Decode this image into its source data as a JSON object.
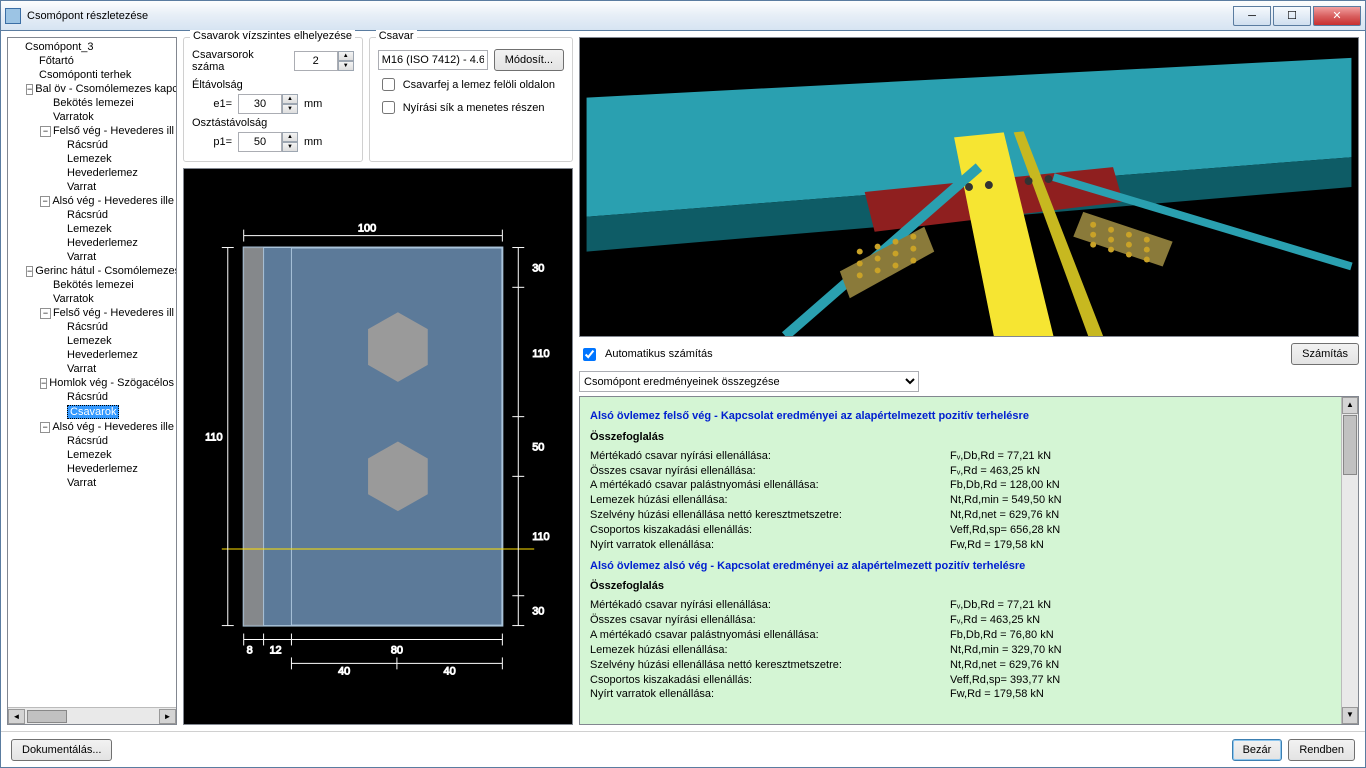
{
  "window": {
    "title": "Csomópont részletezése"
  },
  "tree": {
    "root": "Csomópont_3",
    "items": [
      {
        "t": "Csomópont_3",
        "lvl": 0,
        "exp": ""
      },
      {
        "t": "Főtartó",
        "lvl": 1
      },
      {
        "t": "Csomóponti terhek",
        "lvl": 1
      },
      {
        "t": "Bal öv - Csomólemezes kapc",
        "lvl": 1,
        "exp": "-"
      },
      {
        "t": "Bekötés lemezei",
        "lvl": 2
      },
      {
        "t": "Varratok",
        "lvl": 2
      },
      {
        "t": "Felső vég - Hevederes ill",
        "lvl": 2,
        "exp": "-"
      },
      {
        "t": "Rácsrúd",
        "lvl": 3
      },
      {
        "t": "Lemezek",
        "lvl": 3
      },
      {
        "t": "Hevederlemez",
        "lvl": 3
      },
      {
        "t": "Varrat",
        "lvl": 3
      },
      {
        "t": "Alsó vég - Hevederes ille",
        "lvl": 2,
        "exp": "-"
      },
      {
        "t": "Rácsrúd",
        "lvl": 3
      },
      {
        "t": "Lemezek",
        "lvl": 3
      },
      {
        "t": "Hevederlemez",
        "lvl": 3
      },
      {
        "t": "Varrat",
        "lvl": 3
      },
      {
        "t": "Gerinc hátul - Csomólemezes",
        "lvl": 1,
        "exp": "-"
      },
      {
        "t": "Bekötés lemezei",
        "lvl": 2
      },
      {
        "t": "Varratok",
        "lvl": 2
      },
      {
        "t": "Felső vég - Hevederes ill",
        "lvl": 2,
        "exp": "-"
      },
      {
        "t": "Rácsrúd",
        "lvl": 3
      },
      {
        "t": "Lemezek",
        "lvl": 3
      },
      {
        "t": "Hevederlemez",
        "lvl": 3
      },
      {
        "t": "Varrat",
        "lvl": 3
      },
      {
        "t": "Homlok vég - Szögacélos",
        "lvl": 2,
        "exp": "-"
      },
      {
        "t": "Rácsrúd",
        "lvl": 3
      },
      {
        "t": "Csavarok",
        "lvl": 3,
        "sel": true
      },
      {
        "t": "Alsó vég - Hevederes ille",
        "lvl": 2,
        "exp": "-"
      },
      {
        "t": "Rácsrúd",
        "lvl": 3
      },
      {
        "t": "Lemezek",
        "lvl": 3
      },
      {
        "t": "Hevederlemez",
        "lvl": 3
      },
      {
        "t": "Varrat",
        "lvl": 3
      }
    ]
  },
  "panels": {
    "horiz": {
      "title": "Csavarok vízszintes elhelyezése",
      "rows_label": "Csavarsorok száma",
      "rows": "2",
      "edge_title": "Éltávolság",
      "e1_label": "e1=",
      "e1": "30",
      "e1_unit": "mm",
      "pitch_title": "Osztástávolság",
      "p1_label": "p1=",
      "p1": "50",
      "p1_unit": "mm"
    },
    "bolt": {
      "title": "Csavar",
      "spec": "M16 (ISO 7412) - 4.6",
      "modify": "Módosít...",
      "chk_head": "Csavarfej a lemez felöli oldalon",
      "chk_shear": "Nyírási sík a menetes részen"
    }
  },
  "diagram": {
    "bg": "#000000",
    "plate_fill": "#5c7a99",
    "plate_stroke": "#a9c3da",
    "dash_color": "#ffffff",
    "bolt_fill": "#9a9a9a",
    "top_total": "100",
    "left_h": "110",
    "right_r1": "30",
    "right_r2": "110",
    "right_r3": "50",
    "right_r4": "110",
    "right_r5": "30",
    "bottom_b1": "8",
    "bottom_b2": "12",
    "bottom_b3": "80",
    "bottom_c1": "40",
    "bottom_c2": "40"
  },
  "view3d": {
    "bg": "#000000",
    "beam_main": "#2aa0b0",
    "beam_dark": "#0e5c66",
    "plate": "#8f1f1f",
    "bar": "#f6e532",
    "bolts": "#c9a227"
  },
  "calc": {
    "auto_label": "Automatikus számítás",
    "auto": true,
    "button": "Számítás",
    "combo": "Csomópont eredményeinek összegzése"
  },
  "results": {
    "bg": "#d4f5d4",
    "title_color": "#0020d0",
    "sections": [
      {
        "title": "Alsó övlemez felső vég - Kapcsolat eredményei az alapértelmezett pozitív terhelésre",
        "sub": "Összefoglalás",
        "lines": [
          {
            "k": "Mértékadó csavar nyírási ellenállása:",
            "v": "Fᵥ,Db,Rd = 77,21 kN"
          },
          {
            "k": "Összes csavar nyírási ellenállása:",
            "v": "Fᵥ,Rd = 463,25 kN"
          },
          {
            "k": "A mértékadó csavar palástnyomási ellenállása:",
            "v": "Fb,Db,Rd = 128,00 kN"
          },
          {
            "k": "Lemezek húzási ellenállása:",
            "v": "Nt,Rd,min = 549,50 kN"
          },
          {
            "k": "Szelvény húzási ellenállása nettó keresztmetszetre:",
            "v": "Nt,Rd,net = 629,76 kN"
          },
          {
            "k": "Csoportos kiszakadási ellenállás:",
            "v": "Veff,Rd,sp= 656,28 kN"
          },
          {
            "k": "Nyírt varratok ellenállása:",
            "v": "Fw,Rd = 179,58 kN"
          }
        ]
      },
      {
        "title": "Alsó övlemez alsó vég - Kapcsolat eredményei az alapértelmezett pozitív terhelésre",
        "sub": "Összefoglalás",
        "lines": [
          {
            "k": "Mértékadó csavar nyírási ellenállása:",
            "v": "Fᵥ,Db,Rd = 77,21 kN"
          },
          {
            "k": "Összes csavar nyírási ellenállása:",
            "v": "Fᵥ,Rd = 463,25 kN"
          },
          {
            "k": "A mértékadó csavar palástnyomási ellenállása:",
            "v": "Fb,Db,Rd = 76,80 kN"
          },
          {
            "k": "Lemezek húzási ellenállása:",
            "v": "Nt,Rd,min = 329,70 kN"
          },
          {
            "k": "Szelvény húzási ellenállása nettó keresztmetszetre:",
            "v": "Nt,Rd,net = 629,76 kN"
          },
          {
            "k": "Csoportos kiszakadási ellenállás:",
            "v": "Veff,Rd,sp= 393,77 kN"
          },
          {
            "k": "Nyírt varratok ellenállása:",
            "v": "Fw,Rd = 179,58 kN"
          }
        ]
      }
    ]
  },
  "footer": {
    "doc": "Dokumentálás...",
    "close": "Bezár",
    "ok": "Rendben"
  }
}
